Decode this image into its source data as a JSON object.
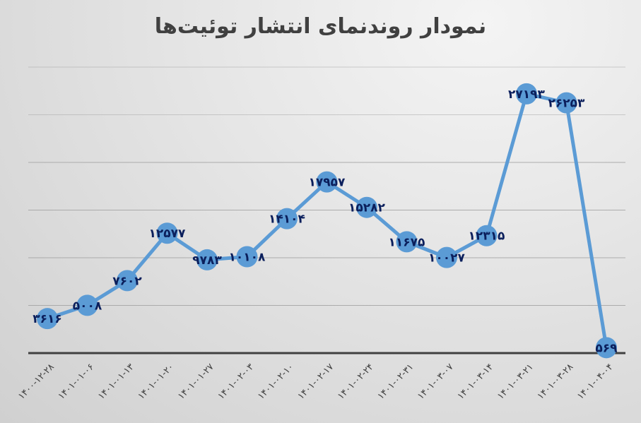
{
  "chart_data": {
    "type": "line",
    "title": "نمودار روندنمای انتشار توئیت‌ها",
    "xlabel": "",
    "ylabel": "",
    "ylim": [
      0,
      30000
    ],
    "y_grid_step": 5000,
    "grid": true,
    "legend": null,
    "categories": [
      "۱۴۰۰-۱۲-۲۸",
      "۱۴۰۱-۰۱-۰۶",
      "۱۴۰۱-۰۱-۱۳",
      "۱۴۰۱-۰۱-۲۰",
      "۱۴۰۱-۰۱-۲۷",
      "۱۴۰۱-۰۲-۰۳",
      "۱۴۰۱-۰۲-۱۰",
      "۱۴۰۱-۰۲-۱۷",
      "۱۴۰۱-۰۲-۲۴",
      "۱۴۰۱-۰۲-۳۱",
      "۱۴۰۱-۰۳-۰۷",
      "۱۴۰۱-۰۳-۱۴",
      "۱۴۰۱-۰۳-۲۱",
      "۱۴۰۱-۰۳-۲۸",
      "۱۴۰۱-۰۴-۰۴"
    ],
    "series": [
      {
        "name": "tweets",
        "color": "#5b9bd5",
        "values": [
          3616,
          5008,
          7602,
          12577,
          9783,
          10108,
          14104,
          17957,
          15282,
          11675,
          10027,
          12315,
          27193,
          26253,
          569
        ],
        "labels": [
          "۳۶۱۶",
          "۵۰۰۸",
          "۷۶۰۲",
          "۱۲۵۷۷",
          "۹۷۸۳",
          "۱۰۱۰۸",
          "۱۴۱۰۴",
          "۱۷۹۵۷",
          "۱۵۲۸۲",
          "۱۱۶۷۵",
          "۱۰۰۲۷",
          "۱۲۳۱۵",
          "۲۷۱۹۳",
          "۲۶۲۵۳",
          "۵۶۹"
        ]
      }
    ]
  },
  "colors": {
    "line": "#5b9bd5",
    "label": "#0b1f5c",
    "grid": "#a6a6a6",
    "axis": "#404040",
    "title": "#404040",
    "tick": "#404040"
  }
}
